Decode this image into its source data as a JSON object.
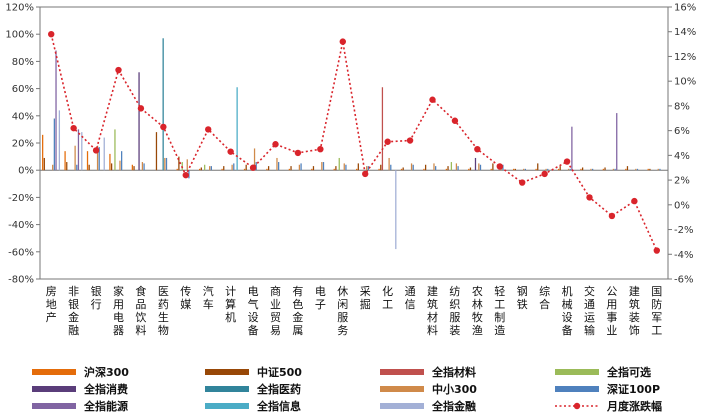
{
  "chart_data": {
    "type": "bar",
    "categories": [
      "房地产",
      "非银金融",
      "银行",
      "家用电器",
      "食品饮料",
      "医药生物",
      "传媒",
      "汽车",
      "计算机",
      "电气设备",
      "商业贸易",
      "有色金属",
      "电子",
      "休闲服务",
      "采掘",
      "化工",
      "通信",
      "建筑材料",
      "纺织服装",
      "农林牧渔",
      "轻工制造",
      "钢铁",
      "综合",
      "机械设备",
      "交通运输",
      "公用事业",
      "建筑装饰",
      "国防军工"
    ],
    "y_left": {
      "min": -80,
      "max": 120,
      "step": 20,
      "format": "{v}%"
    },
    "y_right": {
      "min": -6,
      "max": 16,
      "step": 2,
      "format": "{v}%"
    },
    "grid": false,
    "legend_position": "bottom",
    "series": [
      {
        "name": "沪深300",
        "color": "#E46C0A",
        "values": [
          26,
          14,
          14,
          12,
          4,
          0,
          1,
          1,
          1,
          1,
          1,
          1,
          1,
          1,
          1,
          1,
          1,
          1,
          1,
          1,
          1,
          1,
          1,
          1,
          1,
          1,
          1,
          1
        ]
      },
      {
        "name": "中证500",
        "color": "#984807",
        "values": [
          9,
          6,
          4,
          5,
          3,
          28,
          10,
          2,
          3,
          4,
          3,
          3,
          3,
          3,
          5,
          4,
          2,
          4,
          3,
          2,
          5,
          1,
          5,
          3,
          2,
          2,
          3,
          1
        ]
      },
      {
        "name": "全指材料",
        "color": "#C0504D",
        "values": [
          0,
          0,
          0,
          0,
          0,
          0,
          0,
          0,
          0,
          0,
          0,
          0,
          0,
          0,
          0,
          61,
          0,
          0,
          0,
          0,
          0,
          0,
          0,
          0,
          0,
          0,
          0,
          0
        ]
      },
      {
        "name": "全指可选",
        "color": "#9BBB59",
        "values": [
          0,
          0,
          0,
          30,
          0,
          0,
          6,
          4,
          0,
          0,
          0,
          0,
          0,
          9,
          0,
          0,
          0,
          0,
          6,
          0,
          0,
          0,
          0,
          0,
          0,
          0,
          0,
          0
        ]
      },
      {
        "name": "全指消费",
        "color": "#5A3D7A",
        "values": [
          0,
          0,
          0,
          0,
          72,
          0,
          0,
          0,
          0,
          0,
          0,
          0,
          0,
          0,
          0,
          0,
          0,
          0,
          0,
          9,
          0,
          0,
          0,
          0,
          0,
          0,
          0,
          0
        ]
      },
      {
        "name": "全指医药",
        "color": "#31849B",
        "values": [
          0,
          0,
          0,
          0,
          0,
          97,
          0,
          0,
          0,
          0,
          0,
          0,
          0,
          0,
          0,
          0,
          0,
          0,
          0,
          0,
          0,
          0,
          0,
          0,
          0,
          0,
          0,
          0
        ]
      },
      {
        "name": "中小300",
        "color": "#D08A4A",
        "values": [
          4,
          18,
          18,
          7,
          6,
          9,
          8,
          3,
          4,
          16,
          9,
          4,
          6,
          5,
          3,
          9,
          5,
          5,
          5,
          5,
          4,
          1,
          1,
          1,
          1,
          1,
          1,
          1
        ]
      },
      {
        "name": "深证100P",
        "color": "#4F81BD",
        "values": [
          38,
          4,
          17,
          14,
          5,
          9,
          -6,
          3,
          5,
          6,
          6,
          5,
          6,
          4,
          3,
          4,
          4,
          3,
          3,
          4,
          4,
          1,
          1,
          1,
          1,
          1,
          1,
          1
        ]
      },
      {
        "name": "全指能源",
        "color": "#8064A2",
        "values": [
          88,
          30,
          0,
          0,
          0,
          0,
          0,
          0,
          0,
          0,
          0,
          0,
          0,
          0,
          0,
          0,
          0,
          0,
          0,
          0,
          0,
          0,
          0,
          32,
          0,
          42,
          0,
          0
        ]
      },
      {
        "name": "全指信息",
        "color": "#4BACC6",
        "values": [
          0,
          0,
          0,
          0,
          0,
          0,
          0,
          0,
          61,
          0,
          0,
          0,
          0,
          0,
          0,
          0,
          0,
          0,
          0,
          0,
          0,
          0,
          0,
          0,
          0,
          0,
          0,
          0
        ]
      },
      {
        "name": "全指金融",
        "color": "#A3B0D6",
        "values": [
          44,
          28,
          24,
          0,
          0,
          0,
          0,
          0,
          0,
          0,
          0,
          0,
          0,
          0,
          0,
          -58,
          0,
          0,
          0,
          0,
          0,
          0,
          0,
          0,
          0,
          0,
          0,
          0
        ]
      }
    ],
    "line": {
      "name": "月度涨跌幅",
      "color": "#D9242B",
      "axis": "right",
      "values": [
        13.8,
        6.2,
        4.4,
        10.9,
        7.8,
        6.3,
        2.4,
        6.1,
        4.3,
        3.0,
        4.9,
        4.2,
        4.5,
        13.2,
        2.5,
        5.1,
        5.2,
        8.5,
        6.8,
        4.5,
        3.1,
        1.8,
        2.5,
        3.5,
        0.6,
        -0.9,
        0.3,
        -3.7
      ]
    }
  }
}
